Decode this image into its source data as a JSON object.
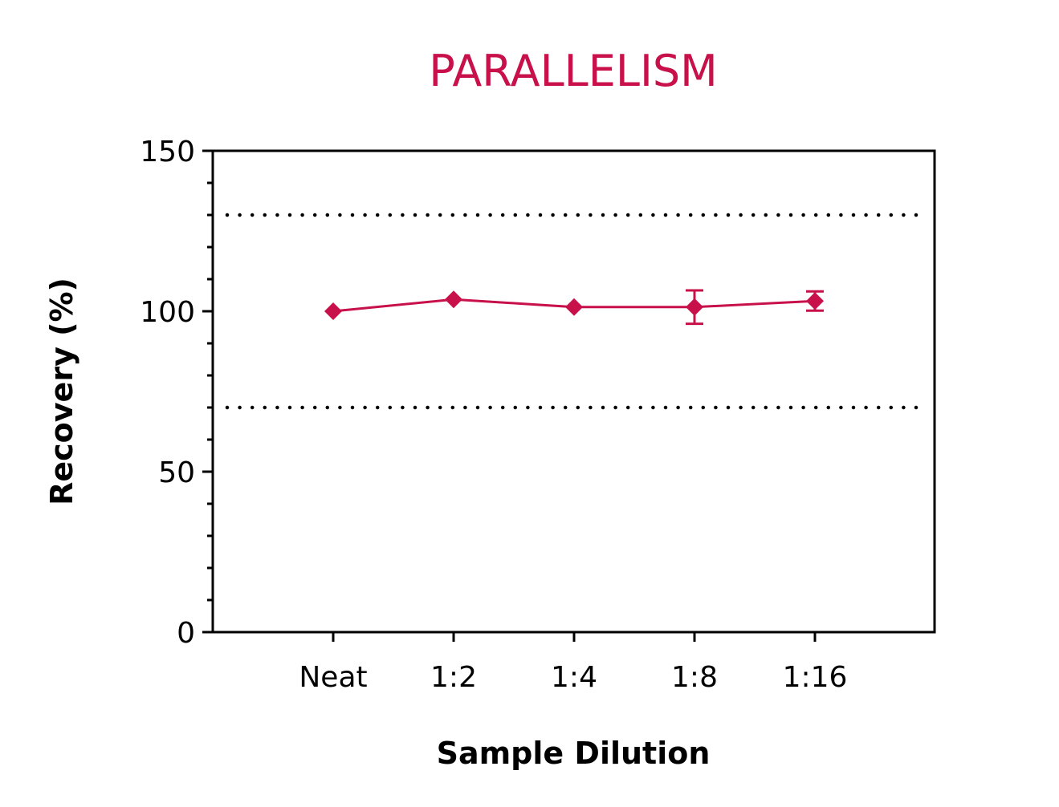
{
  "chart_data": {
    "type": "line",
    "title": "PARALLELISM",
    "xlabel": "Sample Dilution",
    "ylabel": "Recovery (%)",
    "categories": [
      "Neat",
      "1:2",
      "1:4",
      "1:8",
      "1:16"
    ],
    "series": [
      {
        "values": [
          100,
          103.7,
          101.3,
          101.3,
          103.2
        ],
        "error": [
          0,
          0,
          0,
          5.2,
          3.0
        ]
      }
    ],
    "ylim": [
      0,
      150
    ],
    "yticks": [
      0,
      50,
      100,
      150
    ],
    "y_minor_step": 10,
    "reference_lines": [
      70,
      130
    ],
    "grid": false,
    "legend": "none",
    "colors": {
      "series": "#c8104a",
      "title": "#c8104a",
      "axis": "#000000"
    }
  }
}
